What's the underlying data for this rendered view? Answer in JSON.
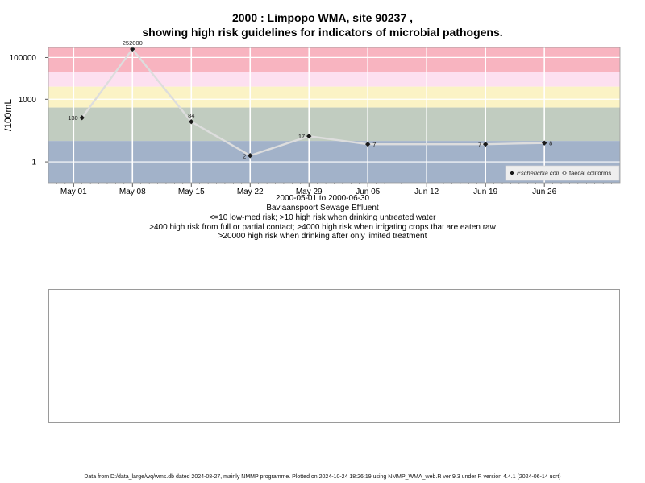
{
  "chart_data": {
    "type": "line",
    "title_line1": "2000 : Limpopo WMA, site 90237 ,",
    "title_line2": "showing high risk guidelines for indicators of microbial pathogens.",
    "ylabel": "/100mL",
    "y_scale": "log10",
    "ylim": [
      0.1,
      300000
    ],
    "y_ticks": [
      1,
      1000,
      100000
    ],
    "y_tick_labels": [
      "1",
      "1000",
      "100000"
    ],
    "x_ticks": [
      "May 01",
      "May 08",
      "May 15",
      "May 22",
      "May 29",
      "Jun 05",
      "Jun 12",
      "Jun 19",
      "Jun 26"
    ],
    "x_tick_dates": [
      "2000-05-01",
      "2000-05-08",
      "2000-05-15",
      "2000-05-22",
      "2000-05-29",
      "2000-06-05",
      "2000-06-12",
      "2000-06-19",
      "2000-06-26"
    ],
    "xlim": [
      "2000-04-28",
      "2000-07-05"
    ],
    "grid": true,
    "risk_bands": [
      {
        "from": 20000,
        "to": 300000,
        "color": "#f8b4c0"
      },
      {
        "from": 4000,
        "to": 20000,
        "color": "#fde0f0"
      },
      {
        "from": 400,
        "to": 4000,
        "color": "#fbf3c5"
      },
      {
        "from": 10,
        "to": 400,
        "color": "#c1ccc0"
      },
      {
        "from": 0.1,
        "to": 10,
        "color": "#a2b2c9"
      }
    ],
    "series": [
      {
        "name": "Escherichia coli",
        "color": "#dddddd",
        "marker_color": "#1a1a1a",
        "x": [
          "2000-05-02",
          "2000-05-08",
          "2000-05-15",
          "2000-05-22",
          "2000-05-29",
          "2000-06-05",
          "2000-06-19",
          "2000-06-26"
        ],
        "values": [
          130,
          252000,
          84,
          2,
          17,
          7,
          7,
          8
        ],
        "labels": [
          "130",
          "252000",
          "84",
          "2",
          "17",
          "7",
          "7",
          "8"
        ],
        "label_side": [
          "left",
          "above",
          "above",
          "left",
          "left",
          "right",
          "left",
          "right"
        ]
      }
    ],
    "legend": {
      "placement": "bottom-right",
      "entries": [
        {
          "label": "Escherichia coli",
          "marker": "filled-diamond",
          "italic": true
        },
        {
          "label": "faecal coliforms",
          "marker": "open-diamond",
          "italic": false
        }
      ]
    }
  },
  "subtitle": {
    "date_range": "2000-05-01 to 2000-06-30",
    "site_name": "Baviaanspoort Sewage Effluent",
    "line1": "<=10 low-med risk; >10 high risk when drinking untreated water",
    "line2": ">400 high risk from full or partial contact; >4000 high risk when irrigating crops that are eaten raw",
    "line3": ">20000 high risk when drinking after only limited treatment"
  },
  "footer": "Data from D:/data_large/wq/wms.db dated 2024-08-27, mainly NMMP programme. Plotted on 2024-10-24 18:26:19 using NMMP_WMA_web.R ver 9.3 under R version 4.4.1 (2024-06-14 ucrt)"
}
